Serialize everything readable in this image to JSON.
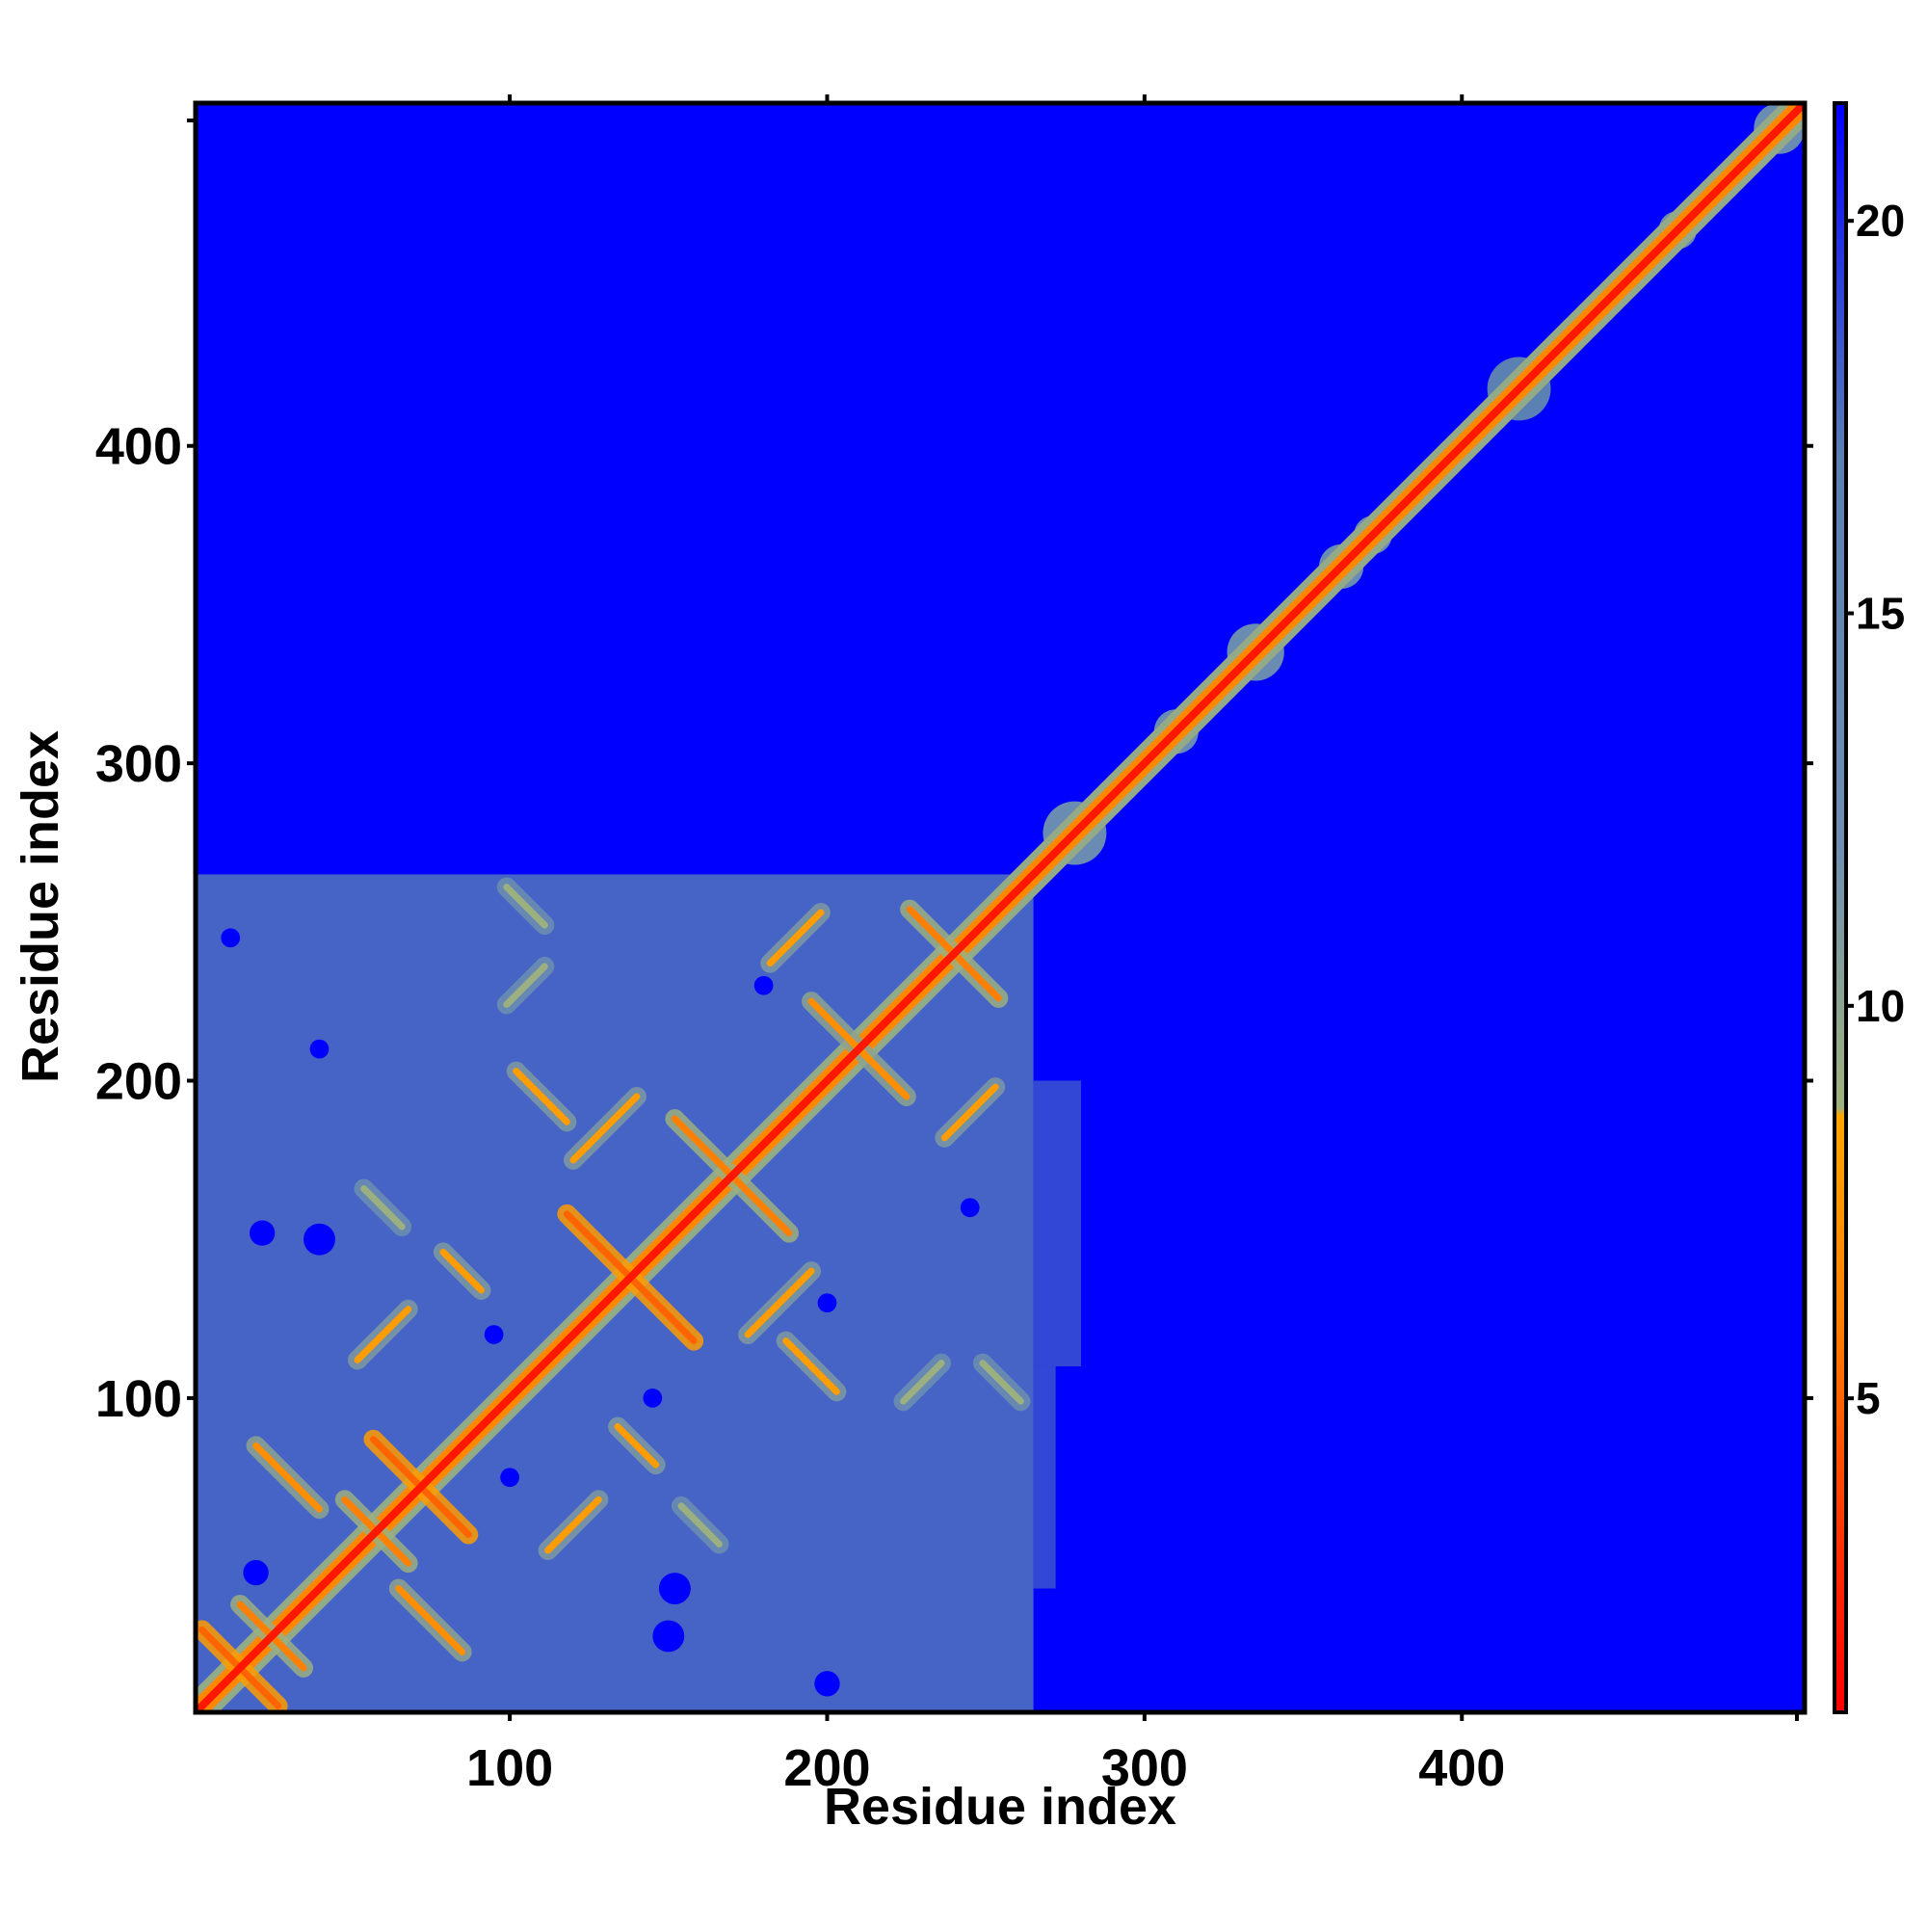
{
  "chart_data": {
    "type": "heatmap",
    "title": "",
    "xlabel": "Residue index",
    "ylabel": "Residue index",
    "xlim": [
      1,
      508
    ],
    "ylim": [
      1,
      508
    ],
    "x_ticks": [
      100,
      200,
      300,
      400
    ],
    "y_ticks": [
      100,
      200,
      300,
      400
    ],
    "colorbar": {
      "range": [
        1,
        21.5
      ],
      "ticks": [
        5,
        10,
        15,
        20
      ],
      "stops": [
        {
          "value": 1.0,
          "color": "#ff0000"
        },
        {
          "value": 3.5,
          "color": "#ff3a00"
        },
        {
          "value": 6.0,
          "color": "#ff8000"
        },
        {
          "value": 8.6,
          "color": "#ffa500"
        },
        {
          "value": 8.7,
          "color": "#9fb27c"
        },
        {
          "value": 12.0,
          "color": "#6f8fb2"
        },
        {
          "value": 17.0,
          "color": "#5a80b4"
        },
        {
          "value": 21.5,
          "color": "#0000ff"
        }
      ]
    },
    "background_value": 21.5,
    "diagonal_value": 2,
    "dense_domain": {
      "x": [
        1,
        265
      ],
      "y": [
        1,
        265
      ],
      "value": 18
    },
    "domain_fringe": [
      {
        "x": [
          265,
          280
        ],
        "y": [
          110,
          200
        ],
        "value": 19
      },
      {
        "x": [
          265,
          272
        ],
        "y": [
          40,
          110
        ],
        "value": 19
      }
    ],
    "depleted_patches": [
      {
        "x": 20,
        "y": 45,
        "r": 4
      },
      {
        "x": 152,
        "y": 40,
        "r": 5
      },
      {
        "x": 150,
        "y": 25,
        "r": 5
      },
      {
        "x": 40,
        "y": 150,
        "r": 5
      },
      {
        "x": 22,
        "y": 152,
        "r": 4
      },
      {
        "x": 95,
        "y": 120,
        "r": 3
      },
      {
        "x": 200,
        "y": 10,
        "r": 4
      },
      {
        "x": 245,
        "y": 160,
        "r": 3
      },
      {
        "x": 200,
        "y": 130,
        "r": 3
      },
      {
        "x": 40,
        "y": 210,
        "r": 3
      },
      {
        "x": 12,
        "y": 245,
        "r": 3
      },
      {
        "x": 145,
        "y": 100,
        "r": 3
      },
      {
        "x": 100,
        "y": 75,
        "r": 3
      },
      {
        "x": 180,
        "y": 230,
        "r": 3
      }
    ],
    "contacts": [
      {
        "cx": 15,
        "cy": 15,
        "half": 12,
        "orientation": "anti",
        "value": 5
      },
      {
        "cx": 25,
        "cy": 25,
        "half": 10,
        "orientation": "anti",
        "value": 6
      },
      {
        "cx": 72,
        "cy": 72,
        "half": 15,
        "orientation": "anti",
        "value": 5
      },
      {
        "cx": 58,
        "cy": 58,
        "half": 10,
        "orientation": "anti",
        "value": 6
      },
      {
        "cx": 138,
        "cy": 138,
        "half": 20,
        "orientation": "anti",
        "value": 5
      },
      {
        "cx": 170,
        "cy": 170,
        "half": 18,
        "orientation": "anti",
        "value": 6
      },
      {
        "cx": 210,
        "cy": 210,
        "half": 15,
        "orientation": "anti",
        "value": 7
      },
      {
        "cx": 240,
        "cy": 240,
        "half": 14,
        "orientation": "anti",
        "value": 6
      },
      {
        "cx": 75,
        "cy": 30,
        "half": 10,
        "orientation": "anti",
        "value": 7
      },
      {
        "cx": 30,
        "cy": 75,
        "half": 10,
        "orientation": "anti",
        "value": 7
      },
      {
        "cx": 120,
        "cy": 60,
        "half": 8,
        "orientation": "para",
        "value": 8
      },
      {
        "cx": 60,
        "cy": 120,
        "half": 8,
        "orientation": "para",
        "value": 8
      },
      {
        "cx": 185,
        "cy": 130,
        "half": 10,
        "orientation": "para",
        "value": 8
      },
      {
        "cx": 130,
        "cy": 185,
        "half": 10,
        "orientation": "para",
        "value": 8
      },
      {
        "cx": 110,
        "cy": 195,
        "half": 8,
        "orientation": "anti",
        "value": 8
      },
      {
        "cx": 195,
        "cy": 110,
        "half": 8,
        "orientation": "anti",
        "value": 8
      },
      {
        "cx": 105,
        "cy": 255,
        "half": 6,
        "orientation": "anti",
        "value": 9
      },
      {
        "cx": 255,
        "cy": 105,
        "half": 6,
        "orientation": "anti",
        "value": 9
      },
      {
        "cx": 245,
        "cy": 190,
        "half": 8,
        "orientation": "para",
        "value": 8
      },
      {
        "cx": 190,
        "cy": 245,
        "half": 8,
        "orientation": "para",
        "value": 8
      },
      {
        "cx": 85,
        "cy": 140,
        "half": 6,
        "orientation": "anti",
        "value": 8
      },
      {
        "cx": 140,
        "cy": 85,
        "half": 6,
        "orientation": "anti",
        "value": 8
      },
      {
        "cx": 230,
        "cy": 105,
        "half": 6,
        "orientation": "para",
        "value": 9
      },
      {
        "cx": 105,
        "cy": 230,
        "half": 6,
        "orientation": "para",
        "value": 9
      },
      {
        "cx": 160,
        "cy": 60,
        "half": 6,
        "orientation": "anti",
        "value": 9
      },
      {
        "cx": 60,
        "cy": 160,
        "half": 6,
        "orientation": "anti",
        "value": 9
      }
    ],
    "diagonal_blobs": [
      {
        "center": 278,
        "radius": 10,
        "value": 13
      },
      {
        "center": 310,
        "radius": 7,
        "value": 13
      },
      {
        "center": 335,
        "radius": 9,
        "value": 13
      },
      {
        "center": 362,
        "radius": 7,
        "value": 13
      },
      {
        "center": 372,
        "radius": 6,
        "value": 13
      },
      {
        "center": 418,
        "radius": 10,
        "value": 17
      },
      {
        "center": 468,
        "radius": 6,
        "value": 13
      },
      {
        "center": 500,
        "radius": 8,
        "value": 13
      }
    ]
  }
}
